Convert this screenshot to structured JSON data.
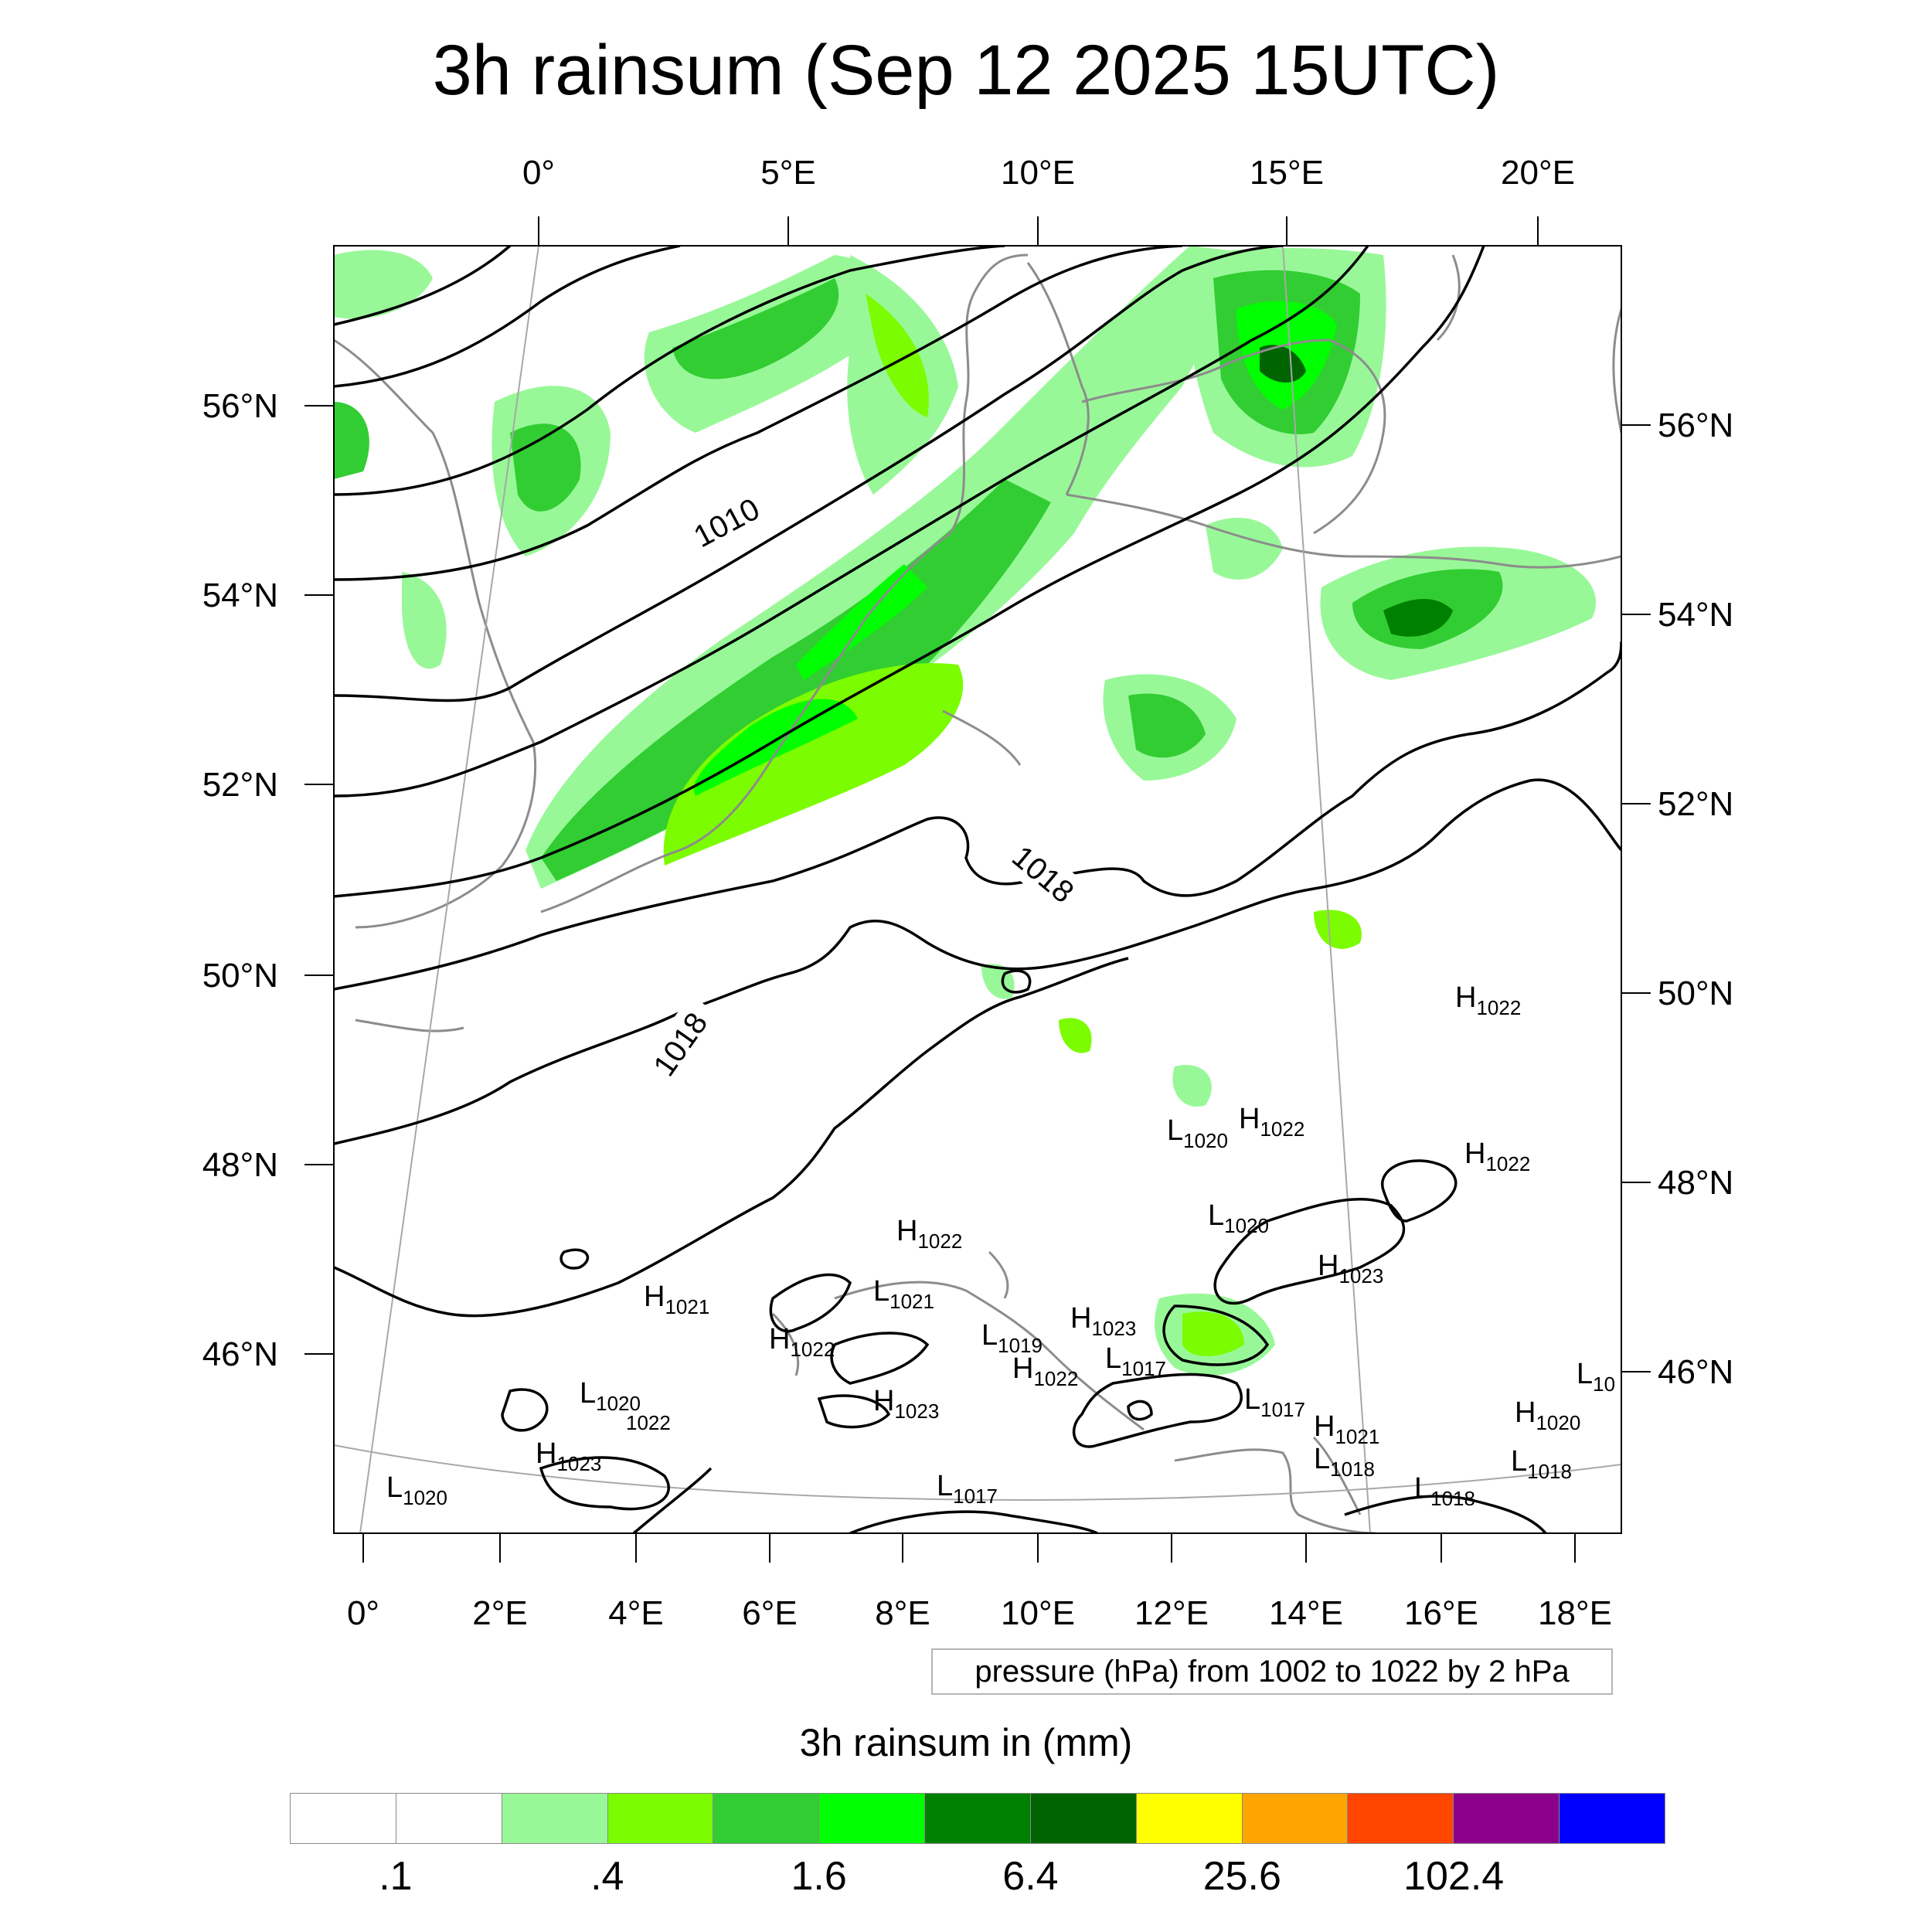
{
  "title": "3h rainsum (Sep 12 2025 15UTC)",
  "map": {
    "projection": "lambert-conformal",
    "top_lon_labels": [
      "0°",
      "5°E",
      "10°E",
      "15°E",
      "20°E"
    ],
    "bottom_lon_labels": [
      "0°",
      "2°E",
      "4°E",
      "6°E",
      "8°E",
      "10°E",
      "12°E",
      "14°E",
      "16°E",
      "18°E"
    ],
    "left_lat_labels": [
      "56°N",
      "54°N",
      "52°N",
      "50°N",
      "48°N",
      "46°N"
    ],
    "right_lat_labels": [
      "56°N",
      "54°N",
      "52°N",
      "50°N",
      "48°N",
      "46°N"
    ],
    "contour_labels": [
      "1010",
      "1018",
      "1018"
    ],
    "pressure_centers": [
      {
        "type": "H",
        "value": "1022"
      },
      {
        "type": "L",
        "value": "1020"
      },
      {
        "type": "H",
        "value": "1022"
      },
      {
        "type": "H",
        "value": "1022"
      },
      {
        "type": "L",
        "value": "1020"
      },
      {
        "type": "H",
        "value": "1022"
      },
      {
        "type": "H",
        "value": "1021"
      },
      {
        "type": "L",
        "value": "1021"
      },
      {
        "type": "H",
        "value": "1023"
      },
      {
        "type": "H",
        "value": "1022"
      },
      {
        "type": "L",
        "value": "1019"
      },
      {
        "type": "H",
        "value": "1023"
      },
      {
        "type": "L",
        "value": "1017"
      },
      {
        "type": "H",
        "value": "1022"
      },
      {
        "type": "L",
        "value": "1020"
      },
      {
        "type": "",
        "value": "1022"
      },
      {
        "type": "H",
        "value": "1023"
      },
      {
        "type": "L",
        "value": "1017"
      },
      {
        "type": "H",
        "value": "1023"
      },
      {
        "type": "L",
        "value": "1020"
      },
      {
        "type": "L",
        "value": "1017"
      },
      {
        "type": "H",
        "value": "1021"
      },
      {
        "type": "L",
        "value": "1018"
      },
      {
        "type": "H",
        "value": "1020"
      },
      {
        "type": "L",
        "value": "1018"
      },
      {
        "type": "L",
        "value": "1018"
      },
      {
        "type": "L",
        "value": "10"
      }
    ],
    "colors": {
      "contour": "#000000",
      "coastline": "#8c8c8c",
      "graticule": "#a8a8a8"
    }
  },
  "pressure_note": "pressure (hPa) from 1002 to 1022 by 2 hPa",
  "legend": {
    "title": "3h rainsum in (mm)",
    "colors": [
      "#ffffff",
      "#ffffff",
      "#98f898",
      "#7cfc00",
      "#32cd32",
      "#00ff00",
      "#008000",
      "#006400",
      "#ffff00",
      "#ffa500",
      "#ff4500",
      "#8b008b",
      "#0000ff"
    ],
    "labels": [
      ".1",
      ".4",
      "1.6",
      "6.4",
      "25.6",
      "102.4"
    ]
  }
}
